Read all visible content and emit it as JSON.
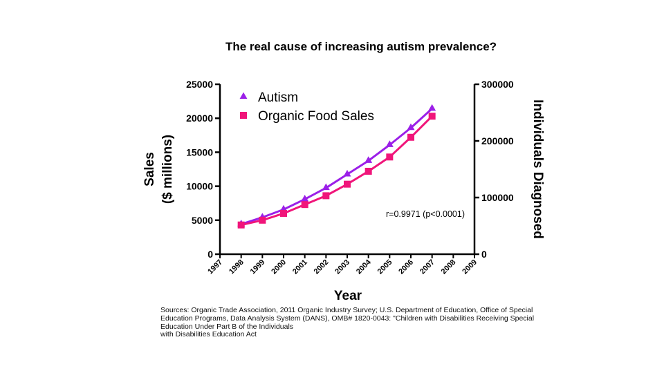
{
  "chart_data": {
    "type": "line",
    "title": "The real cause of increasing autism prevalence?",
    "xlabel": "Year",
    "ylabel_left": [
      "Sales",
      "($ millions)"
    ],
    "ylabel_right": "Individuals Diagnosed",
    "x": [
      1998,
      1999,
      2000,
      2001,
      2002,
      2003,
      2004,
      2005,
      2006,
      2007
    ],
    "xticks": [
      "1997",
      "1998",
      "1999",
      "2000",
      "2001",
      "2002",
      "2003",
      "2004",
      "2005",
      "2006",
      "2007",
      "2008",
      "2009"
    ],
    "xlim": [
      1997,
      2009
    ],
    "ylim_left": [
      0,
      25000
    ],
    "yticks_left": [
      "0",
      "5000",
      "10000",
      "15000",
      "20000",
      "25000"
    ],
    "ylim_right": [
      0,
      300000
    ],
    "yticks_right": [
      "0",
      "100000",
      "200000",
      "300000"
    ],
    "series": [
      {
        "name": "Autism",
        "axis": "right",
        "marker": "triangle",
        "color": "#9b1fe8",
        "values": [
          53000,
          65000,
          79000,
          97000,
          117000,
          141000,
          165000,
          193000,
          223000,
          257000
        ]
      },
      {
        "name": "Organic Food Sales",
        "axis": "left",
        "marker": "square",
        "color": "#f0157a",
        "values": [
          4300,
          5000,
          6000,
          7300,
          8600,
          10300,
          12200,
          14300,
          17200,
          20300
        ]
      }
    ],
    "annotation": "r=0.9971 (p<0.0001)"
  },
  "sources": [
    "Sources: Organic Trade Association,  2011 Organic Industry Survey; U.S. Department of Education, Office of Special",
    "Education Programs, Data Analysis System (DANS), OMB# 1820-0043: \"Children with Disabilities Receiving Special",
    "Education Under Part B of the Individuals",
    "with Disabilities Education Act"
  ]
}
